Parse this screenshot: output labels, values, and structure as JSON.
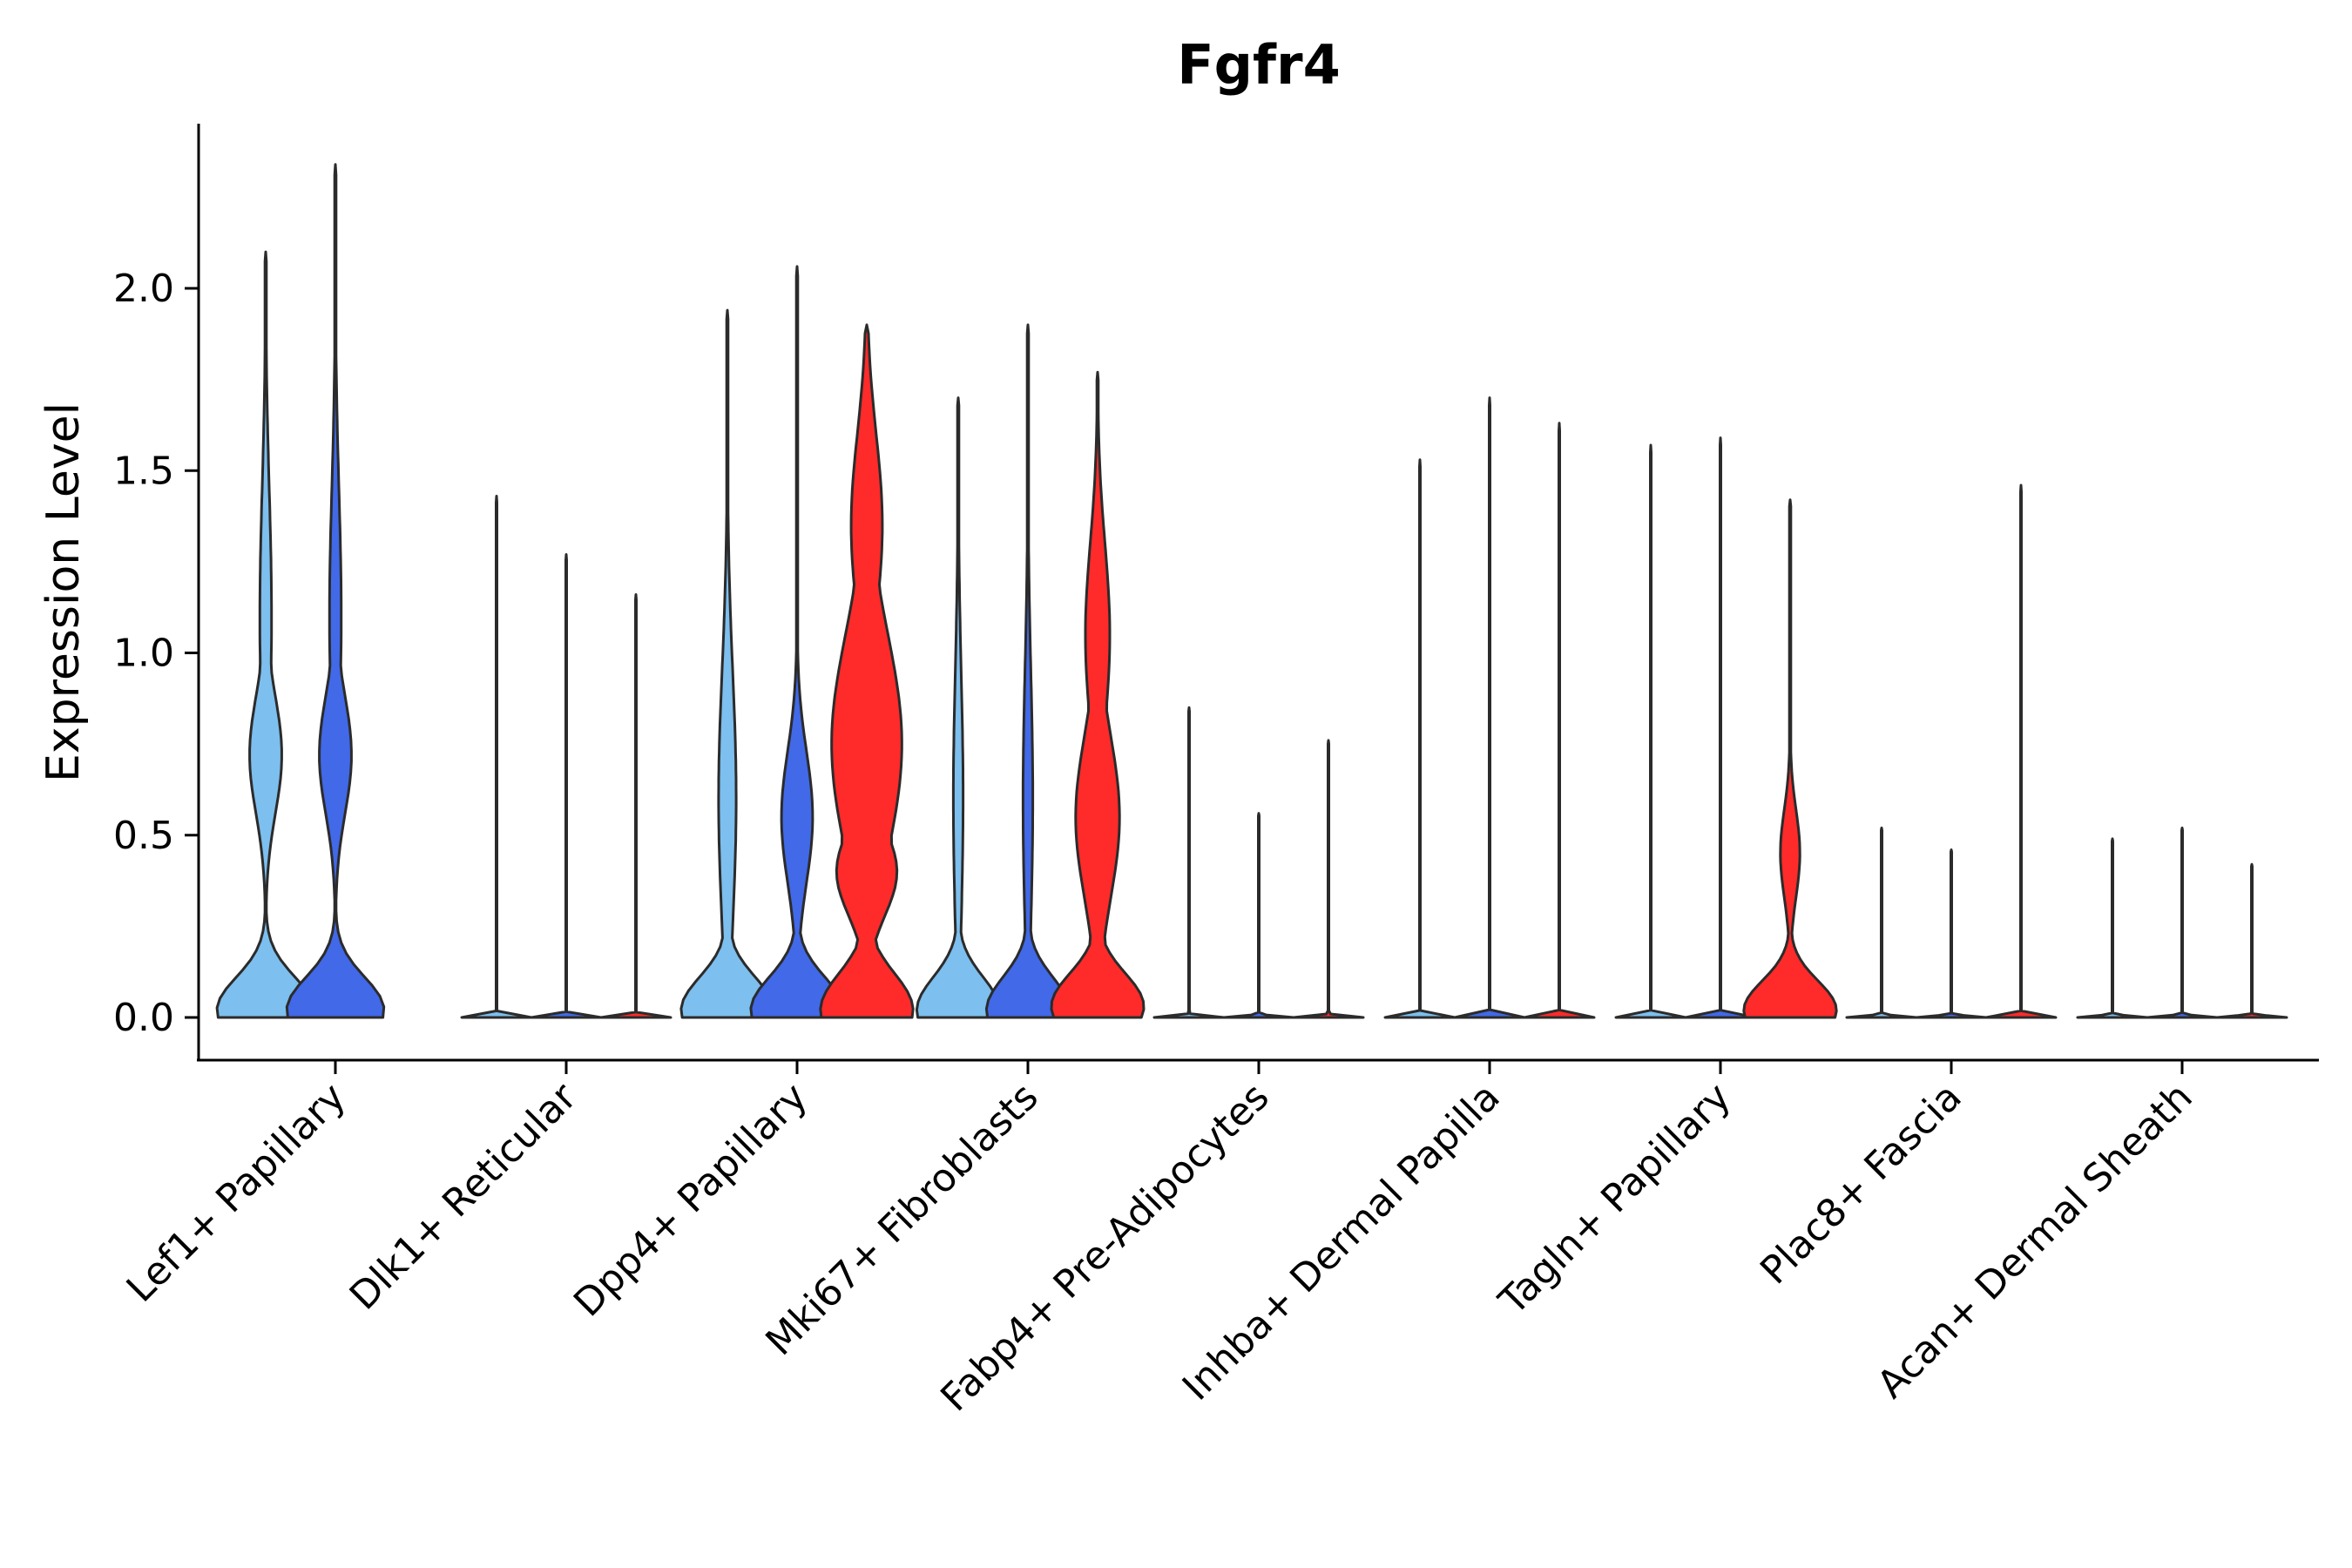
{
  "chart_data": {
    "type": "violin",
    "title": "Fgfr4",
    "xlabel": "",
    "ylabel": "Expression Level",
    "ylim": [
      -0.12,
      2.45
    ],
    "yticks": [
      "0.0",
      "0.5",
      "1.0",
      "1.5",
      "2.0"
    ],
    "ytick_values": [
      0.0,
      0.5,
      1.0,
      1.5,
      2.0
    ],
    "categories": [
      "Lef1+ Papillary",
      "Dlk1+ Reticular",
      "Dpp4+ Papillary",
      "Mki67+ Fibroblasts",
      "Fabp4+ Pre-Adipocytes",
      "Inhba+ Dermal Papilla",
      "Tagln+ Papillary",
      "Plac8+ Fascia",
      "Acan+ Dermal Sheath"
    ],
    "groups": [
      {
        "name": "group 1",
        "color": "#7dbfee"
      },
      {
        "name": "group 2",
        "color": "#4169e8"
      },
      {
        "name": "group 3",
        "color": "#ff2a2a"
      }
    ],
    "series": [
      {
        "category": "Lef1+ Papillary",
        "group": 0,
        "max": 2.1,
        "shape": "bulb"
      },
      {
        "category": "Lef1+ Papillary",
        "group": 1,
        "max": 2.34,
        "shape": "bulb"
      },
      {
        "category": "Dlk1+ Reticular",
        "group": 0,
        "max": 1.43,
        "shape": "flat"
      },
      {
        "category": "Dlk1+ Reticular",
        "group": 1,
        "max": 1.27,
        "shape": "flat"
      },
      {
        "category": "Dlk1+ Reticular",
        "group": 2,
        "max": 1.16,
        "shape": "flat"
      },
      {
        "category": "Dpp4+ Papillary",
        "group": 0,
        "max": 1.94,
        "shape": "base-narrow"
      },
      {
        "category": "Dpp4+ Papillary",
        "group": 1,
        "max": 2.06,
        "shape": "base-mid"
      },
      {
        "category": "Dpp4+ Papillary",
        "group": 2,
        "max": 1.9,
        "shape": "wide"
      },
      {
        "category": "Mki67+ Fibroblasts",
        "group": 0,
        "max": 1.7,
        "shape": "base-thin"
      },
      {
        "category": "Mki67+ Fibroblasts",
        "group": 1,
        "max": 1.9,
        "shape": "base-thin"
      },
      {
        "category": "Mki67+ Fibroblasts",
        "group": 2,
        "max": 1.77,
        "shape": "mid-wide"
      },
      {
        "category": "Fabp4+ Pre-Adipocytes",
        "group": 0,
        "max": 0.85,
        "shape": "flat"
      },
      {
        "category": "Fabp4+ Pre-Adipocytes",
        "group": 1,
        "max": 0.56,
        "shape": "flat"
      },
      {
        "category": "Fabp4+ Pre-Adipocytes",
        "group": 2,
        "max": 0.76,
        "shape": "flat"
      },
      {
        "category": "Inhba+ Dermal Papilla",
        "group": 0,
        "max": 1.53,
        "shape": "flat"
      },
      {
        "category": "Inhba+ Dermal Papilla",
        "group": 1,
        "max": 1.7,
        "shape": "flat"
      },
      {
        "category": "Inhba+ Dermal Papilla",
        "group": 2,
        "max": 1.63,
        "shape": "flat"
      },
      {
        "category": "Tagln+ Papillary",
        "group": 0,
        "max": 1.57,
        "shape": "flat"
      },
      {
        "category": "Tagln+ Papillary",
        "group": 1,
        "max": 1.59,
        "shape": "flat"
      },
      {
        "category": "Tagln+ Papillary",
        "group": 2,
        "max": 1.42,
        "shape": "red-small"
      },
      {
        "category": "Plac8+ Fascia",
        "group": 0,
        "max": 0.52,
        "shape": "flat"
      },
      {
        "category": "Plac8+ Fascia",
        "group": 1,
        "max": 0.46,
        "shape": "flat"
      },
      {
        "category": "Plac8+ Fascia",
        "group": 2,
        "max": 1.46,
        "shape": "flat"
      },
      {
        "category": "Acan+ Dermal Sheath",
        "group": 0,
        "max": 0.49,
        "shape": "flat"
      },
      {
        "category": "Acan+ Dermal Sheath",
        "group": 1,
        "max": 0.52,
        "shape": "flat"
      },
      {
        "category": "Acan+ Dermal Sheath",
        "group": 2,
        "max": 0.42,
        "shape": "flat"
      }
    ]
  }
}
